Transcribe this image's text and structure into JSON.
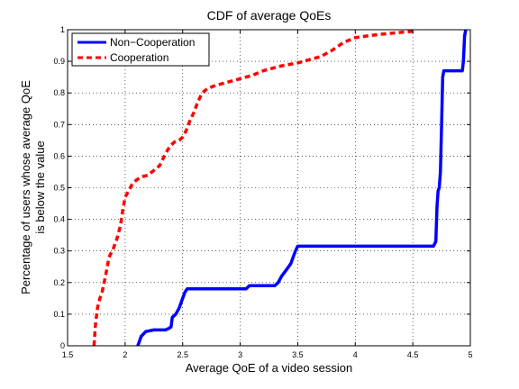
{
  "chart_data": {
    "type": "line",
    "title": "CDF of average QoEs",
    "xlabel": "Average QoE of a video session",
    "ylabel_lines": [
      "Percentage of users whose average QoE",
      "is below the value"
    ],
    "xlim": [
      1.5,
      5
    ],
    "ylim": [
      0,
      1
    ],
    "x_ticks": [
      1.5,
      2,
      2.5,
      3,
      3.5,
      4,
      4.5,
      5
    ],
    "x_tick_labels": [
      "1.5",
      "2",
      "2.5",
      "3",
      "3.5",
      "4",
      "4.5",
      "5"
    ],
    "y_ticks": [
      0,
      0.1,
      0.2,
      0.3,
      0.4,
      0.5,
      0.6,
      0.7,
      0.8,
      0.9,
      1
    ],
    "y_tick_labels": [
      "0",
      "0.1",
      "0.2",
      "0.3",
      "0.4",
      "0.5",
      "0.6",
      "0.7",
      "0.8",
      "0.9",
      "1"
    ],
    "grid": true,
    "legend_position": "top-left",
    "series": [
      {
        "name": "Non−Cooperation",
        "color": "#0000ff",
        "line_style": "solid",
        "points": [
          [
            2.11,
            0.0
          ],
          [
            2.12,
            0.01
          ],
          [
            2.14,
            0.03
          ],
          [
            2.18,
            0.045
          ],
          [
            2.25,
            0.05
          ],
          [
            2.35,
            0.05
          ],
          [
            2.38,
            0.055
          ],
          [
            2.4,
            0.06
          ],
          [
            2.41,
            0.09
          ],
          [
            2.44,
            0.1
          ],
          [
            2.47,
            0.12
          ],
          [
            2.5,
            0.15
          ],
          [
            2.52,
            0.17
          ],
          [
            2.54,
            0.18
          ],
          [
            2.7,
            0.18
          ],
          [
            3.05,
            0.18
          ],
          [
            3.08,
            0.19
          ],
          [
            3.3,
            0.19
          ],
          [
            3.33,
            0.2
          ],
          [
            3.36,
            0.22
          ],
          [
            3.4,
            0.24
          ],
          [
            3.44,
            0.26
          ],
          [
            3.46,
            0.28
          ],
          [
            3.48,
            0.3
          ],
          [
            3.5,
            0.315
          ],
          [
            4.0,
            0.315
          ],
          [
            4.5,
            0.315
          ],
          [
            4.68,
            0.315
          ],
          [
            4.7,
            0.33
          ],
          [
            4.71,
            0.44
          ],
          [
            4.72,
            0.49
          ],
          [
            4.73,
            0.5
          ],
          [
            4.74,
            0.55
          ],
          [
            4.75,
            0.7
          ],
          [
            4.76,
            0.85
          ],
          [
            4.77,
            0.87
          ],
          [
            4.8,
            0.87
          ],
          [
            4.93,
            0.87
          ],
          [
            4.94,
            0.9
          ],
          [
            4.95,
            0.98
          ],
          [
            4.96,
            1.0
          ]
        ]
      },
      {
        "name": "Cooperation",
        "color": "#ff0000",
        "line_style": "dashed",
        "points": [
          [
            1.73,
            0.0
          ],
          [
            1.74,
            0.06
          ],
          [
            1.76,
            0.12
          ],
          [
            1.78,
            0.15
          ],
          [
            1.8,
            0.17
          ],
          [
            1.83,
            0.22
          ],
          [
            1.86,
            0.28
          ],
          [
            1.9,
            0.31
          ],
          [
            1.93,
            0.34
          ],
          [
            1.96,
            0.38
          ],
          [
            1.98,
            0.43
          ],
          [
            2.0,
            0.47
          ],
          [
            2.03,
            0.49
          ],
          [
            2.06,
            0.51
          ],
          [
            2.1,
            0.525
          ],
          [
            2.15,
            0.535
          ],
          [
            2.2,
            0.54
          ],
          [
            2.25,
            0.555
          ],
          [
            2.3,
            0.57
          ],
          [
            2.34,
            0.6
          ],
          [
            2.37,
            0.62
          ],
          [
            2.4,
            0.635
          ],
          [
            2.43,
            0.645
          ],
          [
            2.47,
            0.65
          ],
          [
            2.5,
            0.66
          ],
          [
            2.53,
            0.68
          ],
          [
            2.56,
            0.71
          ],
          [
            2.6,
            0.74
          ],
          [
            2.63,
            0.77
          ],
          [
            2.67,
            0.8
          ],
          [
            2.72,
            0.815
          ],
          [
            2.8,
            0.825
          ],
          [
            2.9,
            0.835
          ],
          [
            3.0,
            0.845
          ],
          [
            3.1,
            0.855
          ],
          [
            3.2,
            0.87
          ],
          [
            3.35,
            0.885
          ],
          [
            3.5,
            0.895
          ],
          [
            3.6,
            0.905
          ],
          [
            3.7,
            0.915
          ],
          [
            3.8,
            0.935
          ],
          [
            3.9,
            0.96
          ],
          [
            4.0,
            0.975
          ],
          [
            4.1,
            0.98
          ],
          [
            4.2,
            0.985
          ],
          [
            4.35,
            0.99
          ],
          [
            4.5,
            0.995
          ],
          [
            4.52,
            1.0
          ]
        ]
      }
    ]
  }
}
